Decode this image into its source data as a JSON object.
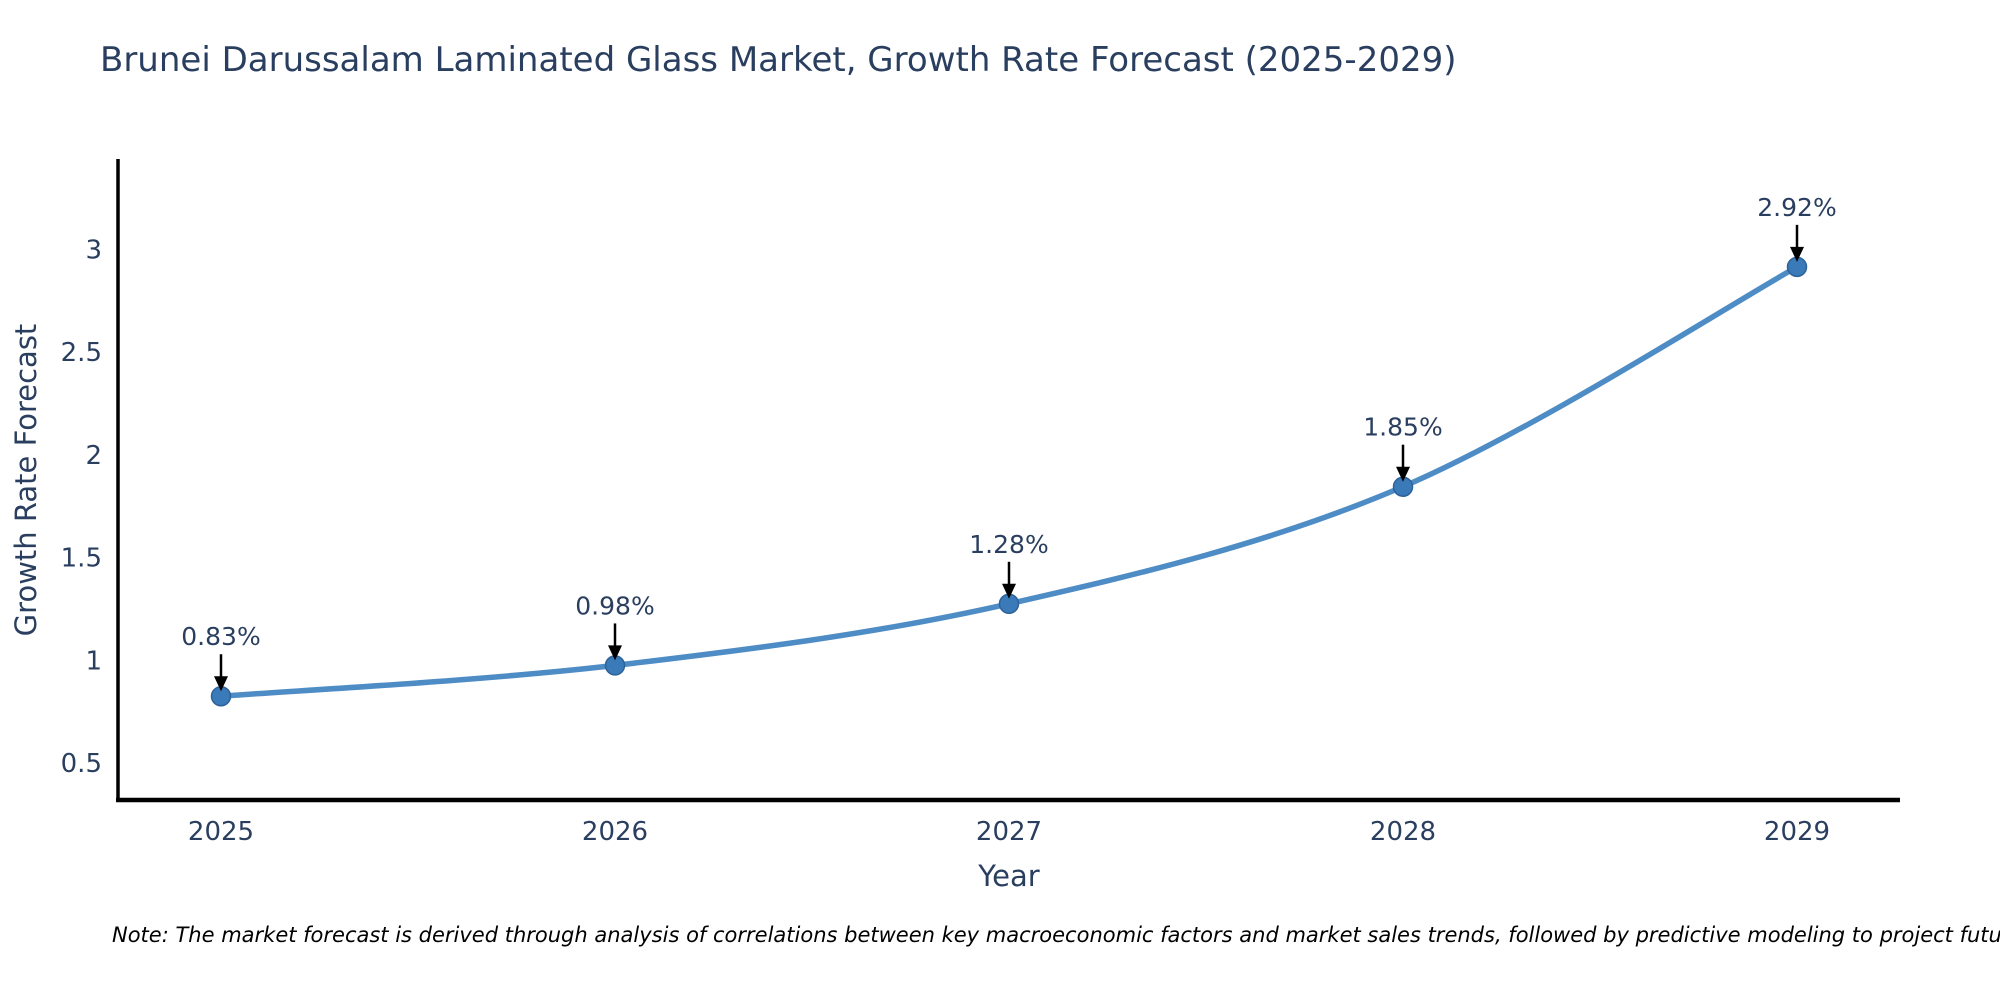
{
  "page": {
    "background": "#ffffff"
  },
  "note": "Note: The market forecast is derived through analysis of correlations between key macroeconomic factors and market sales trends, followed by predictive modeling to project future sales",
  "chart_data": {
    "type": "line",
    "title": "Brunei Darussalam Laminated Glass Market, Growth Rate Forecast (2025-2029)",
    "xlabel": "Year",
    "ylabel": "Growth Rate Forecast",
    "categories": [
      2025,
      2026,
      2027,
      2028,
      2029
    ],
    "series": [
      {
        "name": "Growth Rate Forecast",
        "values": [
          0.83,
          0.98,
          1.28,
          1.85,
          2.92
        ],
        "point_labels": [
          "0.83%",
          "0.98%",
          "1.28%",
          "1.85%",
          "2.92%"
        ]
      }
    ],
    "line_shape": "spline",
    "markers": true,
    "grid": false,
    "legend_position": "none",
    "ylim": [
      0.325,
      3.445
    ],
    "yticks": [
      0.5,
      1,
      1.5,
      2,
      2.5,
      3
    ],
    "annotations_have_arrows": true,
    "colors": {
      "line": "#4e8cc6",
      "marker": "#3b7ab8",
      "marker_edge": "#2e6298",
      "annotation_arrow": "#000000",
      "axis_line": "#000000",
      "text": "#2a3f5f",
      "note_text": "#000000"
    }
  }
}
